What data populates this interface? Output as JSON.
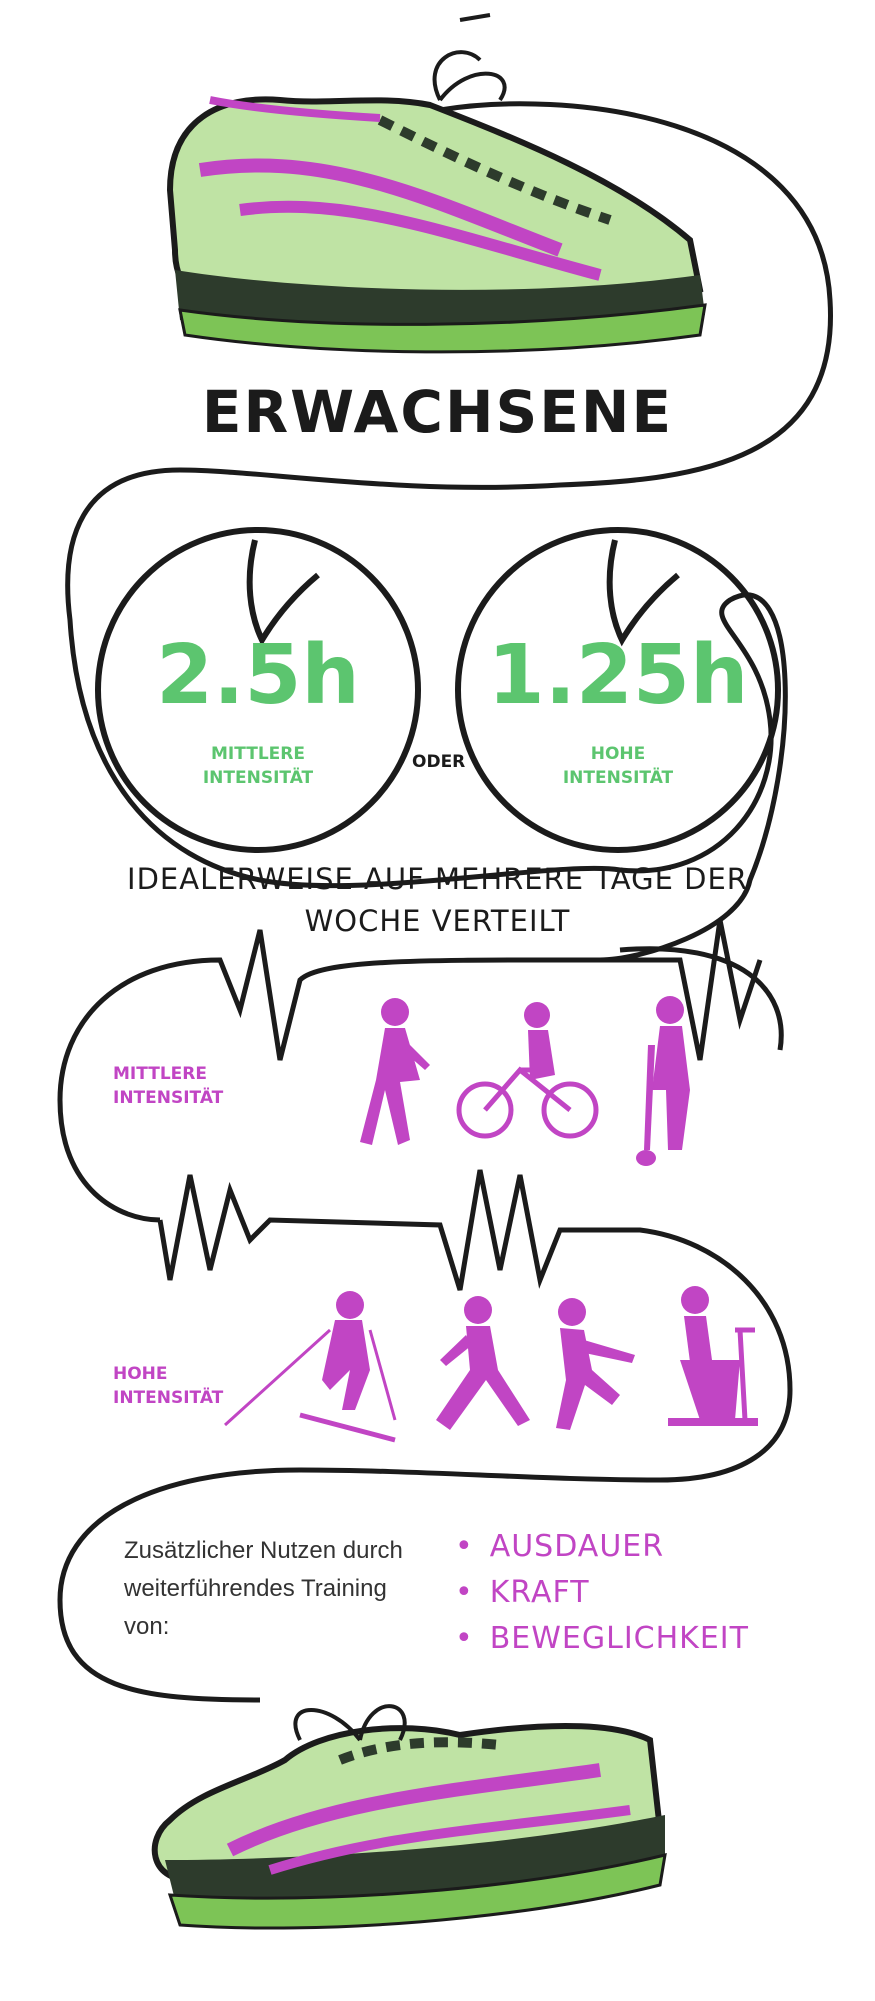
{
  "title": "ERWACHSENE",
  "clocks": [
    {
      "value": "2.5h",
      "label_line1": "MITTLERE",
      "label_line2": "INTENSITÄT"
    },
    {
      "value": "1.25h",
      "label_line1": "HOHE",
      "label_line2": "INTENSITÄT"
    }
  ],
  "connector": "ODER",
  "distribution": {
    "line1": "IDEALERWEISE AUF MEHRERE TAGE DER",
    "line2": "WOCHE VERTEILT"
  },
  "moderate": {
    "line1": "MITTLERE",
    "line2": "INTENSITÄT",
    "activities": [
      "walking-figure-icon",
      "cycling-figure-icon",
      "shoveling-figure-icon"
    ]
  },
  "vigorous": {
    "line1": "HOHE",
    "line2": "INTENSITÄT",
    "activities": [
      "cross-country-skiing-figure-icon",
      "running-figure-icon",
      "sprinting-figure-icon",
      "exercise-bike-figure-icon"
    ]
  },
  "benefits": {
    "intro_line1": "Zusätzlicher Nutzen durch",
    "intro_line2": "weiterführendes Training",
    "intro_line3": "von:",
    "items": [
      "AUSDAUER",
      "KRAFT",
      "BEWEGLICHKEIT"
    ]
  },
  "colors": {
    "green": "#5cc56f",
    "pink": "#c145c4",
    "shoe_light": "#bfe3a4",
    "shoe_mid": "#7dc456",
    "ink": "#1b1b1b"
  }
}
